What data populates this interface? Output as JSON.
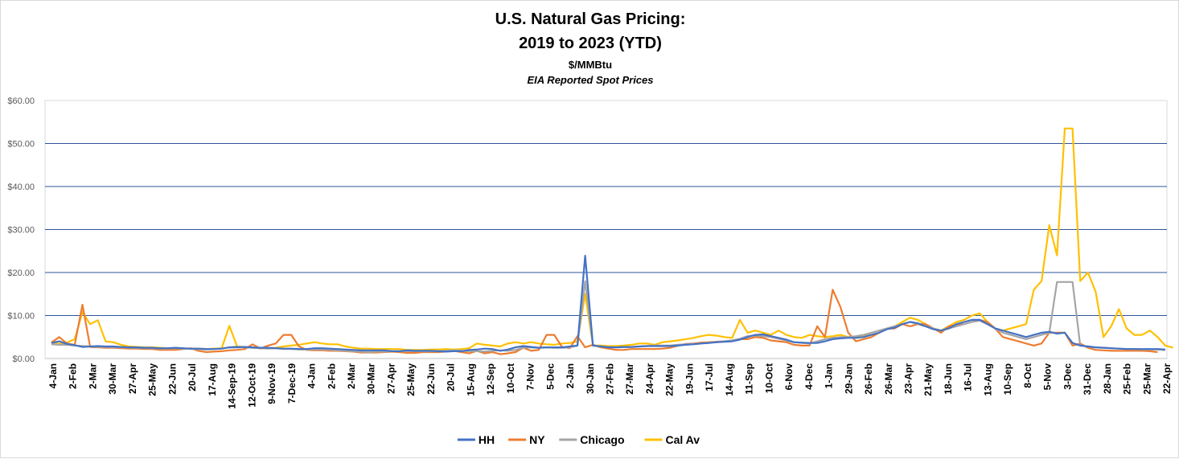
{
  "chart_data": {
    "type": "line",
    "title": "U.S. Natural Gas Pricing:",
    "title_line2": "2019 to 2023 (YTD)",
    "subtitle": "$/MMBtu",
    "subtitle2": "EIA Reported Spot Prices",
    "ylim": [
      0,
      60
    ],
    "yticks": [
      "$0.00",
      "$10.00",
      "$20.00",
      "$30.00",
      "$40.00",
      "$50.00",
      "$60.00"
    ],
    "grid": true,
    "legend_placement": "bottom",
    "x_tick_labels": [
      "4-Jan",
      "2-Feb",
      "2-Mar",
      "30-Mar",
      "27-Apr",
      "25-May",
      "22-Jun",
      "20-Jul",
      "17-Aug",
      "14-Sep-19",
      "12-Oct-19",
      "9-Nov-19",
      "7-Dec-19",
      "4-Jan",
      "2-Feb",
      "2-Mar",
      "30-Mar",
      "27-Apr",
      "25-May",
      "22-Jun",
      "20-Jul",
      "15-Aug",
      "12-Sep",
      "10-Oct",
      "7-Nov",
      "5-Dec",
      "2-Jan",
      "30-Jan",
      "27-Feb",
      "27-Mar",
      "24-Apr",
      "22-May",
      "19-Jun",
      "17-Jul",
      "14-Aug",
      "11-Sep",
      "10-Oct",
      "6-Nov",
      "4-Dec",
      "1-Jan",
      "29-Jan",
      "26-Feb",
      "26-Mar",
      "23-Apr",
      "21-May",
      "18-Jun",
      "16-Jul",
      "13-Aug",
      "10-Sep",
      "8-Oct",
      "5-Nov",
      "3-Dec",
      "31-Dec",
      "28-Jan",
      "25-Feb",
      "25-Mar",
      "22-Apr"
    ],
    "series": [
      {
        "name": "HH",
        "color": "#4472C4",
        "values": [
          3.6,
          4.0,
          3.4,
          3.1,
          2.7,
          2.8,
          2.9,
          2.8,
          2.8,
          2.7,
          2.6,
          2.6,
          2.5,
          2.5,
          2.4,
          2.4,
          2.5,
          2.4,
          2.3,
          2.3,
          2.2,
          2.2,
          2.3,
          2.6,
          2.6,
          2.7,
          2.6,
          2.5,
          2.5,
          2.4,
          2.3,
          2.3,
          2.2,
          2.2,
          2.4,
          2.4,
          2.3,
          2.2,
          2.1,
          2.0,
          1.9,
          1.9,
          1.9,
          1.9,
          1.7,
          1.7,
          1.9,
          1.8,
          1.8,
          1.8,
          1.7,
          1.6,
          1.7,
          1.7,
          2.0,
          2.1,
          2.3,
          2.2,
          1.8,
          2.1,
          2.6,
          2.9,
          2.7,
          2.5,
          2.6,
          2.6,
          2.6,
          2.8,
          3.0,
          23.9,
          3.0,
          2.8,
          2.6,
          2.6,
          2.7,
          2.7,
          2.8,
          2.9,
          2.9,
          2.9,
          2.9,
          3.0,
          3.2,
          3.3,
          3.5,
          3.6,
          3.8,
          3.9,
          4.0,
          4.4,
          5.0,
          5.5,
          5.6,
          5.2,
          4.8,
          4.4,
          3.8,
          3.7,
          3.6,
          3.6,
          4.0,
          4.5,
          4.7,
          4.8,
          4.8,
          5.0,
          5.5,
          6.0,
          6.8,
          7.2,
          8.0,
          8.5,
          8.2,
          7.5,
          6.8,
          6.5,
          7.0,
          8.0,
          8.5,
          9.0,
          9.0,
          8.0,
          7.0,
          6.5,
          6.0,
          5.5,
          5.0,
          5.5,
          6.0,
          6.2,
          5.8,
          6.0,
          3.6,
          3.0,
          2.8,
          2.6,
          2.5,
          2.4,
          2.3,
          2.2,
          2.2,
          2.2,
          2.2,
          2.2,
          2.1
        ]
      },
      {
        "name": "NY",
        "color": "#ED7D31",
        "values": [
          3.7,
          5.0,
          3.5,
          3.2,
          12.5,
          2.7,
          2.6,
          2.5,
          2.5,
          2.4,
          2.3,
          2.3,
          2.2,
          2.2,
          2.0,
          2.0,
          2.0,
          2.2,
          2.4,
          1.8,
          1.5,
          1.6,
          1.7,
          1.9,
          2.0,
          2.2,
          3.3,
          2.3,
          3.0,
          3.5,
          5.5,
          5.5,
          2.8,
          2.0,
          1.9,
          1.9,
          1.8,
          1.8,
          1.7,
          1.6,
          1.4,
          1.4,
          1.4,
          1.5,
          1.6,
          1.5,
          1.3,
          1.3,
          1.5,
          1.5,
          1.5,
          1.6,
          1.8,
          1.5,
          1.2,
          1.8,
          1.2,
          1.5,
          1.0,
          1.2,
          1.5,
          2.5,
          1.8,
          2.0,
          5.5,
          5.5,
          2.7,
          2.4,
          5.2,
          2.6,
          3.2,
          2.6,
          2.3,
          2.0,
          2.0,
          2.2,
          2.2,
          2.2,
          2.2,
          2.3,
          2.5,
          3.0,
          3.4,
          3.5,
          3.7,
          3.8,
          3.9,
          4.0,
          4.2,
          4.5,
          4.5,
          5.0,
          4.8,
          4.2,
          4.0,
          3.8,
          3.2,
          3.0,
          3.0,
          7.5,
          5.0,
          16.0,
          12.0,
          6.0,
          4.0,
          4.5,
          5.0,
          6.0,
          7.0,
          7.0,
          8.0,
          7.5,
          8.0,
          8.0,
          7.0,
          6.0,
          7.5,
          7.8,
          8.0,
          8.5,
          9.0,
          8.5,
          7.0,
          5.0,
          4.5,
          4.0,
          3.5,
          3.0,
          3.5,
          6.0,
          6.0,
          6.0,
          3.0,
          3.5,
          2.5,
          2.0,
          1.9,
          1.8,
          1.8,
          1.8,
          1.8,
          1.8,
          1.7,
          1.5
        ]
      },
      {
        "name": "Chicago",
        "color": "#A5A5A5",
        "values": [
          3.3,
          3.2,
          3.2,
          3.0,
          2.9,
          2.8,
          2.7,
          2.7,
          2.6,
          2.6,
          2.5,
          2.5,
          2.4,
          2.4,
          2.3,
          2.3,
          2.4,
          2.3,
          2.2,
          2.2,
          2.1,
          2.2,
          2.3,
          2.6,
          2.8,
          2.6,
          2.5,
          2.4,
          2.3,
          2.4,
          2.2,
          2.2,
          2.1,
          2.1,
          2.1,
          2.1,
          2.0,
          1.9,
          1.8,
          1.7,
          1.6,
          1.5,
          1.6,
          1.6,
          1.7,
          1.7,
          1.7,
          1.7,
          1.7,
          1.7,
          1.7,
          1.8,
          1.9,
          1.8,
          1.7,
          1.7,
          1.6,
          1.8,
          1.9,
          1.8,
          2.0,
          2.5,
          2.6,
          2.5,
          2.6,
          2.5,
          2.5,
          2.6,
          3.0,
          18.0,
          3.0,
          2.8,
          2.7,
          2.6,
          2.7,
          2.7,
          2.8,
          2.9,
          3.0,
          3.0,
          3.0,
          3.2,
          3.3,
          3.4,
          3.5,
          3.7,
          3.8,
          4.0,
          4.2,
          4.6,
          5.2,
          5.4,
          5.2,
          5.0,
          4.6,
          4.2,
          3.8,
          3.6,
          3.5,
          4.0,
          4.5,
          4.8,
          5.0,
          5.0,
          5.2,
          5.5,
          6.0,
          6.5,
          7.0,
          7.5,
          8.0,
          8.5,
          8.0,
          7.5,
          7.0,
          6.5,
          7.0,
          7.5,
          8.0,
          8.5,
          8.8,
          8.0,
          7.0,
          6.0,
          5.5,
          5.0,
          4.5,
          5.0,
          5.5,
          6.0,
          17.8,
          17.8,
          17.8,
          3.0,
          2.8,
          2.6,
          2.5,
          2.4,
          2.3,
          2.2,
          2.2,
          2.1,
          2.1,
          2.1,
          2.0
        ]
      },
      {
        "name": "Cal Av",
        "color": "#FFC000",
        "values": [
          3.9,
          3.4,
          3.7,
          4.5,
          10.8,
          8.0,
          8.9,
          4.0,
          3.8,
          3.2,
          2.8,
          2.7,
          2.6,
          2.6,
          2.5,
          2.4,
          2.4,
          2.3,
          2.3,
          2.3,
          2.2,
          2.3,
          2.4,
          7.6,
          2.8,
          2.7,
          2.5,
          2.4,
          2.4,
          2.5,
          2.8,
          3.0,
          3.2,
          3.5,
          3.8,
          3.5,
          3.3,
          3.3,
          2.8,
          2.5,
          2.3,
          2.3,
          2.2,
          2.2,
          2.2,
          2.2,
          2.0,
          2.0,
          2.0,
          2.1,
          2.1,
          2.2,
          2.1,
          2.2,
          2.4,
          3.5,
          3.2,
          3.0,
          2.8,
          3.5,
          3.8,
          3.5,
          3.8,
          3.5,
          3.3,
          3.2,
          3.5,
          3.6,
          4.0,
          15.0,
          3.0,
          3.0,
          2.9,
          2.9,
          3.0,
          3.2,
          3.5,
          3.5,
          3.2,
          3.8,
          4.0,
          4.2,
          4.5,
          4.8,
          5.2,
          5.5,
          5.3,
          5.0,
          4.8,
          9.0,
          6.0,
          6.5,
          6.0,
          5.5,
          6.5,
          5.5,
          5.0,
          4.8,
          5.5,
          5.2,
          5.0,
          5.2,
          5.5,
          5.0,
          5.0,
          5.2,
          5.5,
          6.0,
          7.0,
          7.5,
          8.5,
          9.5,
          9.0,
          8.0,
          7.0,
          6.5,
          7.5,
          8.5,
          9.0,
          10.0,
          10.5,
          8.5,
          7.0,
          6.5,
          7.0,
          7.5,
          8.0,
          16.0,
          18.0,
          31.0,
          24.0,
          53.5,
          53.5,
          18.0,
          20.0,
          15.5,
          5.0,
          7.5,
          11.5,
          7.0,
          5.5,
          5.5,
          6.5,
          5.0,
          3.0,
          2.5
        ]
      }
    ]
  }
}
